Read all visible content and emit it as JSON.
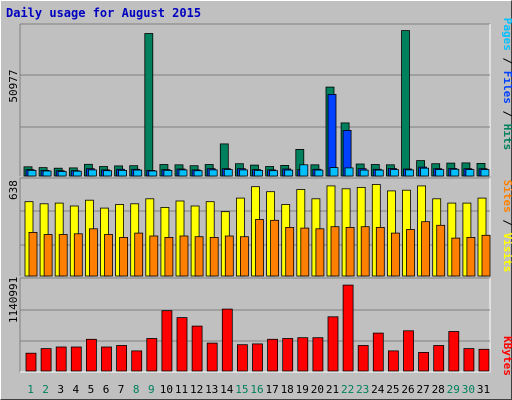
{
  "title": "Daily usage for August 2015",
  "colors": {
    "hits": "#00805c",
    "files": "#0040ff",
    "pages": "#00c0ff",
    "visits": "#ffff00",
    "sites": "#ff8000",
    "kbytes": "#ff0000",
    "weekend_label": "#00805c",
    "weekday_label": "#000000"
  },
  "chart_data": [
    {
      "type": "bar",
      "title": "Daily usage for August 2015",
      "panel": "top",
      "categories": [
        "1",
        "2",
        "3",
        "4",
        "5",
        "6",
        "7",
        "8",
        "9",
        "10",
        "11",
        "12",
        "13",
        "14",
        "15",
        "16",
        "17",
        "18",
        "19",
        "20",
        "21",
        "22",
        "23",
        "24",
        "25",
        "26",
        "27",
        "28",
        "29",
        "30",
        "31"
      ],
      "weekend_days": [
        "1",
        "2",
        "8",
        "9",
        "15",
        "16",
        "22",
        "23",
        "29",
        "30"
      ],
      "ymax_label": "50977",
      "ylim": [
        0,
        50977
      ],
      "legend": [
        "Pages",
        "Files",
        "Hits"
      ],
      "series": [
        {
          "name": "Hits",
          "values": [
            3300,
            3000,
            2800,
            2900,
            4200,
            3400,
            3600,
            3700,
            50977,
            4100,
            4000,
            3700,
            4100,
            11500,
            4400,
            3900,
            3400,
            3800,
            9500,
            4000,
            31800,
            19000,
            4300,
            4100,
            4000,
            52000,
            5500,
            4400,
            4600,
            4700,
            4500
          ]
        },
        {
          "name": "Files",
          "values": [
            2300,
            2000,
            1900,
            1900,
            2600,
            2200,
            2400,
            2400,
            2000,
            2300,
            2500,
            2200,
            2600,
            2600,
            2600,
            2300,
            2200,
            2500,
            2300,
            2400,
            29200,
            16300,
            2600,
            2400,
            2700,
            2500,
            3200,
            2600,
            2700,
            2600,
            2600
          ]
        },
        {
          "name": "Pages",
          "values": [
            2000,
            1800,
            1600,
            1700,
            2200,
            1900,
            2000,
            2100,
            1800,
            2000,
            2200,
            1900,
            2200,
            2300,
            2200,
            2000,
            1900,
            2100,
            4000,
            2100,
            3000,
            2900,
            2100,
            2100,
            2300,
            2200,
            2800,
            2300,
            2400,
            2300,
            2300
          ]
        }
      ]
    },
    {
      "type": "bar",
      "panel": "middle",
      "categories": [
        "1",
        "2",
        "3",
        "4",
        "5",
        "6",
        "7",
        "8",
        "9",
        "10",
        "11",
        "12",
        "13",
        "14",
        "15",
        "16",
        "17",
        "18",
        "19",
        "20",
        "21",
        "22",
        "23",
        "24",
        "25",
        "26",
        "27",
        "28",
        "29",
        "30",
        "31"
      ],
      "ymax_label": "638",
      "ylim": [
        0,
        638
      ],
      "legend": [
        "Sites",
        "Visits"
      ],
      "series": [
        {
          "name": "Visits",
          "values": [
            520,
            505,
            510,
            490,
            530,
            475,
            500,
            505,
            540,
            480,
            525,
            490,
            520,
            450,
            545,
            625,
            590,
            500,
            605,
            540,
            630,
            610,
            620,
            640,
            595,
            600,
            630,
            540,
            510,
            510,
            545
          ]
        },
        {
          "name": "Sites",
          "values": [
            305,
            290,
            290,
            295,
            330,
            290,
            270,
            300,
            280,
            270,
            280,
            275,
            270,
            280,
            275,
            395,
            390,
            340,
            335,
            330,
            345,
            340,
            345,
            340,
            300,
            325,
            380,
            355,
            265,
            270,
            285
          ]
        }
      ]
    },
    {
      "type": "bar",
      "panel": "bottom",
      "categories": [
        "1",
        "2",
        "3",
        "4",
        "5",
        "6",
        "7",
        "8",
        "9",
        "10",
        "11",
        "12",
        "13",
        "14",
        "15",
        "16",
        "17",
        "18",
        "19",
        "20",
        "21",
        "22",
        "23",
        "24",
        "25",
        "26",
        "27",
        "28",
        "29",
        "30",
        "31"
      ],
      "ymax_label": "1140991",
      "ylim": [
        0,
        1140991
      ],
      "legend": [
        "KBytes"
      ],
      "series": [
        {
          "name": "KBytes",
          "values": [
            230000,
            290000,
            310000,
            310000,
            410000,
            310000,
            330000,
            260000,
            420000,
            780000,
            690000,
            580000,
            360000,
            800000,
            340000,
            350000,
            410000,
            420000,
            430000,
            430000,
            700000,
            1110000,
            330000,
            490000,
            260000,
            520000,
            240000,
            330000,
            510000,
            290000,
            280000
          ]
        }
      ]
    }
  ]
}
